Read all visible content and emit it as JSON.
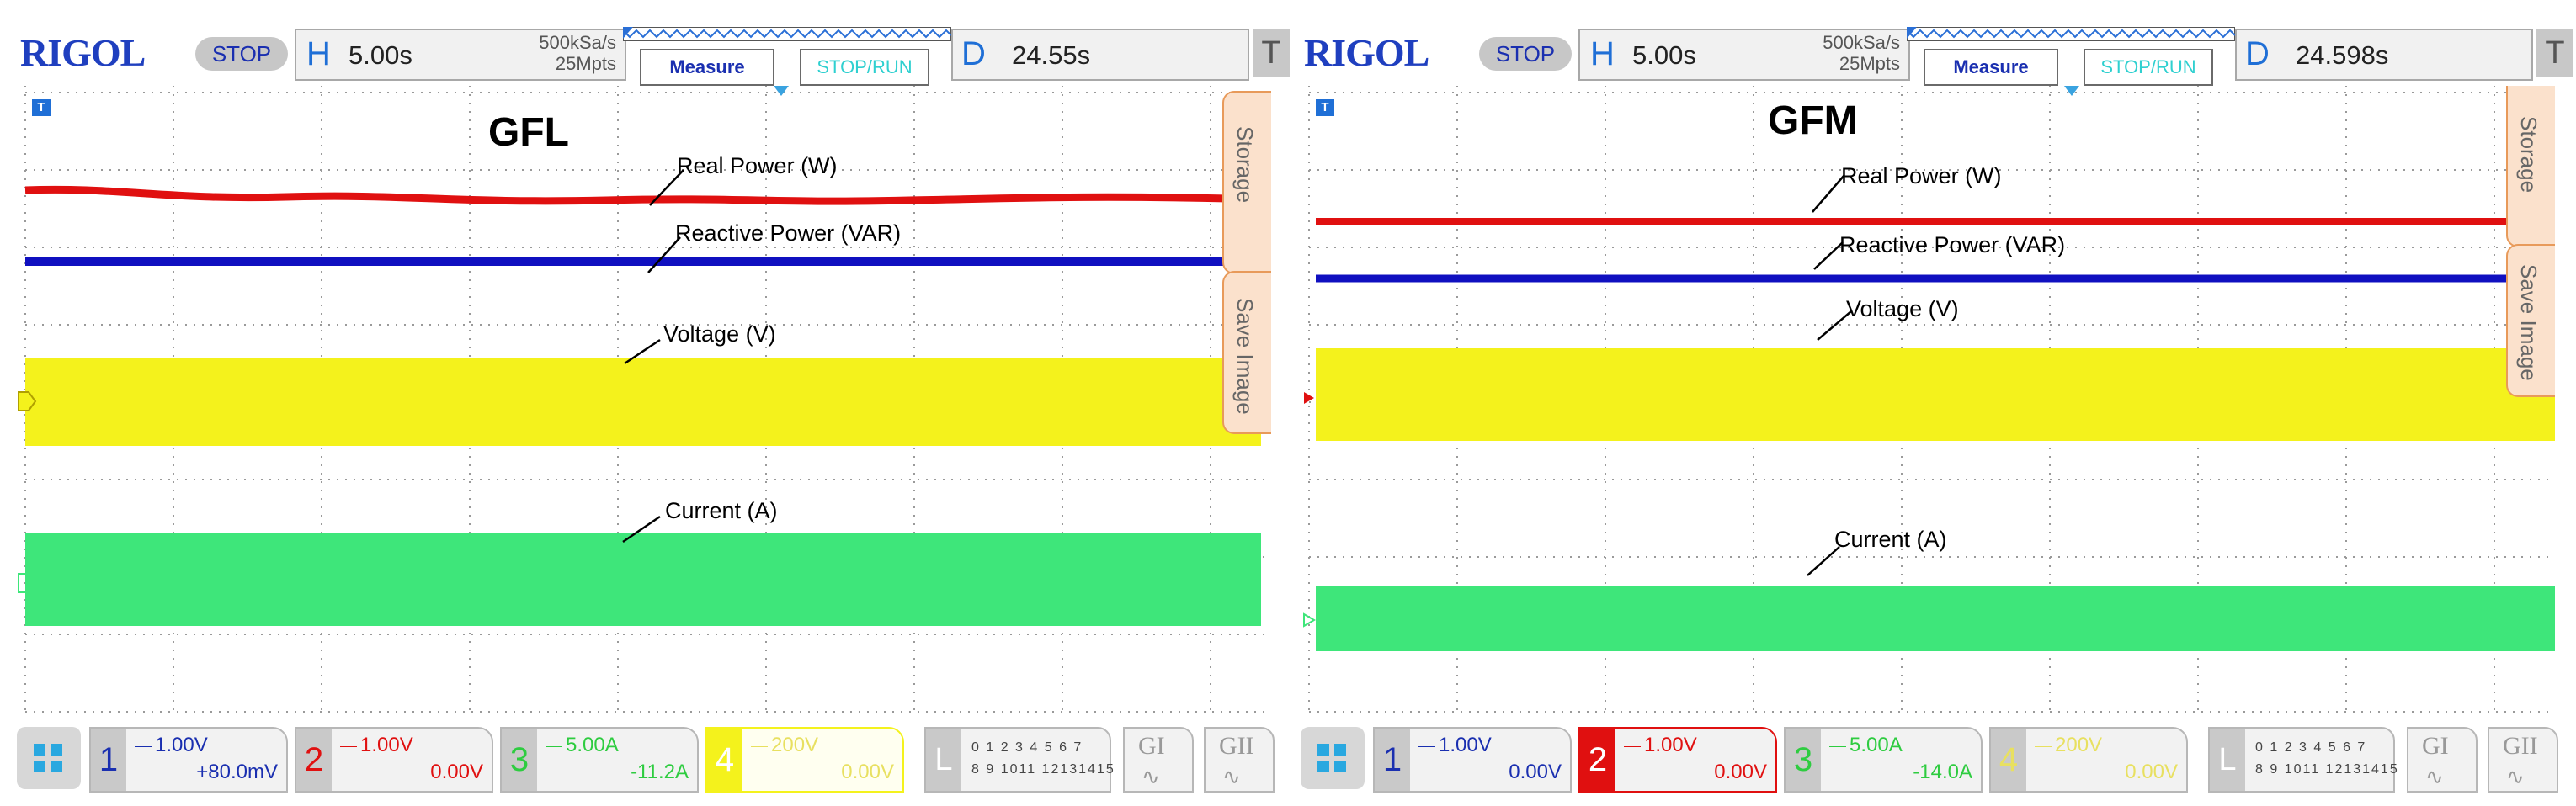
{
  "scopes": [
    {
      "brand": "RIGOL",
      "run_state": "STOP",
      "horizontal": {
        "letter": "H",
        "timebase": "5.00s",
        "sample_rate": "500kSa/s",
        "memory_depth": "25Mpts"
      },
      "measure_label": "Measure",
      "stoprun_label": "STOP/RUN",
      "delay": {
        "letter": "D",
        "value": "24.55s"
      },
      "trigger_label": "T",
      "marker_label": "T",
      "title": "GFL",
      "signals": [
        {
          "label": "Real Power (W)",
          "color": "#e01010"
        },
        {
          "label": "Reactive Power (VAR)",
          "color": "#1010c0"
        },
        {
          "label": "Voltage (V)",
          "color": "#f4f21c"
        },
        {
          "label": "Current (A)",
          "color": "#3ee67a"
        }
      ],
      "side_tabs": [
        "Storage",
        "Save Image"
      ],
      "channels": [
        {
          "num": "1",
          "scale": "1.00V",
          "offset": "+80.0mV",
          "color": "#1a2fb0"
        },
        {
          "num": "2",
          "scale": "1.00V",
          "offset": "0.00V",
          "color": "#e01010"
        },
        {
          "num": "3",
          "scale": "5.00A",
          "offset": "-11.2A",
          "color": "#2ecc40"
        },
        {
          "num": "4",
          "scale": "200V",
          "offset": "0.00V",
          "color": "#f4f21c"
        }
      ],
      "logic": {
        "label": "L",
        "row1": "0 1 2 3 4 5 6 7",
        "row2": "8 9 1011 12131415"
      },
      "gen1": "GI",
      "gen2": "GII"
    },
    {
      "brand": "RIGOL",
      "run_state": "STOP",
      "horizontal": {
        "letter": "H",
        "timebase": "5.00s",
        "sample_rate": "500kSa/s",
        "memory_depth": "25Mpts"
      },
      "measure_label": "Measure",
      "stoprun_label": "STOP/RUN",
      "delay": {
        "letter": "D",
        "value": "24.598s"
      },
      "trigger_label": "T",
      "marker_label": "T",
      "title": "GFM",
      "signals": [
        {
          "label": "Real Power (W)",
          "color": "#e01010"
        },
        {
          "label": "Reactive Power (VAR)",
          "color": "#1010c0"
        },
        {
          "label": "Voltage (V)",
          "color": "#f4f21c"
        },
        {
          "label": "Current (A)",
          "color": "#3ee67a"
        }
      ],
      "side_tabs": [
        "Storage",
        "Save Image"
      ],
      "channels": [
        {
          "num": "1",
          "scale": "1.00V",
          "offset": "0.00V",
          "color": "#1a2fb0"
        },
        {
          "num": "2",
          "scale": "1.00V",
          "offset": "0.00V",
          "color": "#e01010"
        },
        {
          "num": "3",
          "scale": "5.00A",
          "offset": "-14.0A",
          "color": "#2ecc40"
        },
        {
          "num": "4",
          "scale": "200V",
          "offset": "0.00V",
          "color": "#f4f21c"
        }
      ],
      "logic": {
        "label": "L",
        "row1": "0 1 2 3 4 5 6 7",
        "row2": "8 9 1011 12131415"
      },
      "gen1": "GI",
      "gen2": "GII"
    }
  ]
}
